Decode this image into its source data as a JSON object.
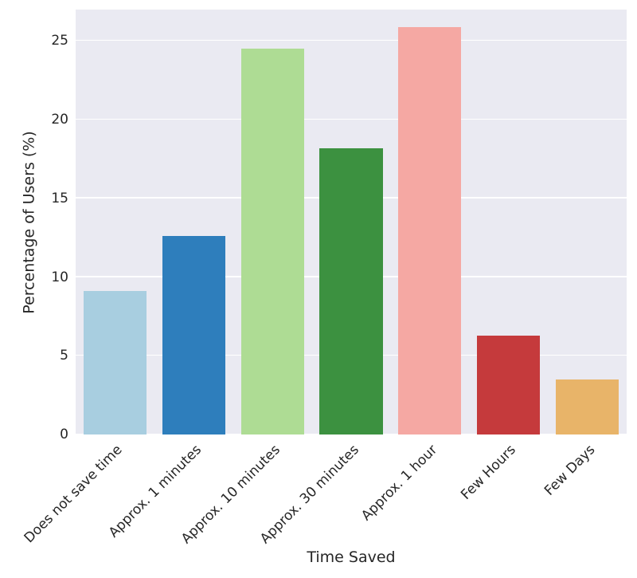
{
  "chart_data": {
    "type": "bar",
    "title": "",
    "xlabel": "Time Saved",
    "ylabel": "Percentage of Users (%)",
    "categories": [
      "Does not save time",
      "Approx. 1 minutes",
      "Approx. 10 minutes",
      "Approx. 30 minutes",
      "Approx. 1 hour",
      "Few Hours",
      "Few Days"
    ],
    "values": [
      9.1,
      12.6,
      24.5,
      18.2,
      25.9,
      6.3,
      3.5
    ],
    "bar_colors": [
      "#a8cee0",
      "#2e7ebc",
      "#aedc94",
      "#3c9140",
      "#f5a8a3",
      "#c53a3c",
      "#e8b469"
    ],
    "yticks": [
      0,
      5,
      10,
      15,
      20,
      25
    ],
    "ylim": [
      0,
      27
    ],
    "grid": true,
    "legend": "none",
    "plot_background": "#eaeaf2",
    "grid_color": "#ffffff",
    "figure_background": "#ffffff",
    "text_color": "#262626"
  }
}
